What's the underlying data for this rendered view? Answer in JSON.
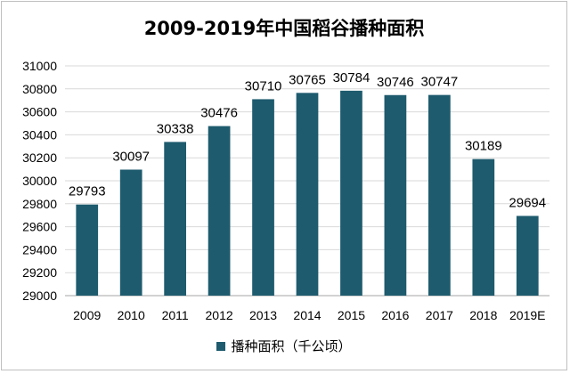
{
  "chart_data": {
    "type": "bar",
    "title": "2009-2019年中国稻谷播种面积",
    "categories": [
      "2009",
      "2010",
      "2011",
      "2012",
      "2013",
      "2014",
      "2015",
      "2016",
      "2017",
      "2018",
      "2019E"
    ],
    "series": [
      {
        "name": "播种面积（千公顷）",
        "values": [
          29793,
          30097,
          30338,
          30476,
          30710,
          30765,
          30784,
          30746,
          30747,
          30189,
          29694
        ],
        "color": "#1e5b6e"
      }
    ],
    "ylim": [
      29000,
      31000
    ],
    "yticks": [
      29000,
      29200,
      29400,
      29600,
      29800,
      30000,
      30200,
      30400,
      30600,
      30800,
      31000
    ],
    "grid": true,
    "legend_position": "bottom"
  }
}
